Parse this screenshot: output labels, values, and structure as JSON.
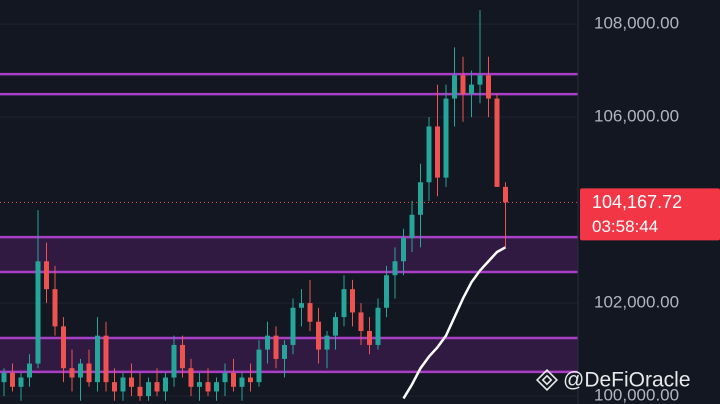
{
  "chart_data": {
    "type": "candlestick",
    "ylim": [
      99830,
      108520
    ],
    "yticks": [
      {
        "value": 100000,
        "label": "100,000.00"
      },
      {
        "value": 102000,
        "label": "102,000.00"
      },
      {
        "value": 106000,
        "label": "106,000.00"
      },
      {
        "value": 108000,
        "label": "108,000.00"
      }
    ],
    "grid": true,
    "up_color": "#26a69a",
    "down_color": "#ef5350",
    "open": [
      100300,
      100500,
      100200,
      100400,
      100700,
      102900,
      102300,
      101500,
      100600,
      100400,
      100700,
      100300,
      101300,
      100300,
      100100,
      100400,
      100200,
      100000,
      100300,
      100100,
      100400,
      101100,
      100600,
      100200,
      100300,
      100100,
      100300,
      100500,
      100200,
      100400,
      100300,
      101000,
      101300,
      100800,
      101100,
      101900,
      102000,
      101600,
      101000,
      101300,
      101700,
      102300,
      101800,
      101400,
      101100,
      101900,
      102600,
      102900,
      103400,
      103900,
      104600,
      105800,
      104700,
      106400,
      106900,
      106500,
      106700,
      106900,
      106400,
      104500
    ],
    "high": [
      100600,
      100700,
      100500,
      100900,
      104000,
      103300,
      102800,
      101700,
      101000,
      100800,
      101000,
      101700,
      101600,
      100600,
      100500,
      100700,
      100500,
      100400,
      100600,
      100500,
      101300,
      101300,
      100800,
      100500,
      100600,
      100400,
      100700,
      100800,
      100500,
      100700,
      101200,
      101600,
      101500,
      101200,
      102100,
      102300,
      102500,
      101900,
      101400,
      101800,
      102600,
      102500,
      102000,
      101700,
      102100,
      102800,
      103200,
      103600,
      104200,
      105000,
      106000,
      106700,
      106700,
      107500,
      107300,
      107000,
      108300,
      107300,
      106500,
      104600
    ],
    "low": [
      100000,
      100100,
      99900,
      100200,
      100600,
      102000,
      101300,
      100300,
      100100,
      99900,
      100200,
      100100,
      100100,
      99900,
      99900,
      100000,
      99900,
      99900,
      100000,
      99900,
      100200,
      100400,
      100000,
      99900,
      100000,
      99900,
      100000,
      100100,
      99900,
      100100,
      100200,
      100700,
      100600,
      100400,
      100900,
      101500,
      101400,
      100700,
      100600,
      101000,
      101500,
      101500,
      101100,
      100900,
      101000,
      101700,
      102100,
      102600,
      103100,
      103200,
      104200,
      104300,
      104500,
      105800,
      105900,
      106000,
      106300,
      106000,
      104500,
      103200
    ],
    "close": [
      100500,
      100200,
      100400,
      100700,
      102900,
      102300,
      101500,
      100600,
      100400,
      100700,
      100300,
      101300,
      100300,
      100100,
      100400,
      100200,
      100000,
      100300,
      100100,
      100400,
      101100,
      100600,
      100200,
      100300,
      100100,
      100300,
      100500,
      100200,
      100400,
      100300,
      101000,
      101300,
      100800,
      101100,
      101900,
      102000,
      101600,
      101000,
      101300,
      101700,
      102300,
      101800,
      101400,
      101100,
      101900,
      102600,
      102900,
      103400,
      103900,
      104600,
      105800,
      104700,
      106400,
      106900,
      106500,
      106700,
      106900,
      106400,
      104500,
      104167.72
    ],
    "moving_average": {
      "color": "#ffffff",
      "values": [
        null,
        null,
        null,
        null,
        null,
        null,
        null,
        null,
        null,
        null,
        null,
        null,
        null,
        null,
        null,
        null,
        null,
        null,
        null,
        null,
        null,
        null,
        null,
        null,
        null,
        null,
        null,
        null,
        null,
        null,
        null,
        null,
        null,
        null,
        null,
        null,
        null,
        null,
        null,
        null,
        null,
        null,
        null,
        null,
        null,
        null,
        null,
        99950,
        100250,
        100600,
        100850,
        101050,
        101300,
        101700,
        102100,
        102450,
        102700,
        102900,
        103100,
        103200
      ]
    },
    "levels": {
      "color": "#a93ec7",
      "values": [
        106925,
        106495,
        103420,
        102670,
        101250,
        100520
      ]
    },
    "zones": [
      [
        103420,
        102670
      ],
      [
        101250,
        100520
      ]
    ],
    "last_price": {
      "value": 104167.72,
      "label": "104,167.72"
    },
    "countdown": "03:58:44",
    "watermark": "@DeFiOracle"
  }
}
